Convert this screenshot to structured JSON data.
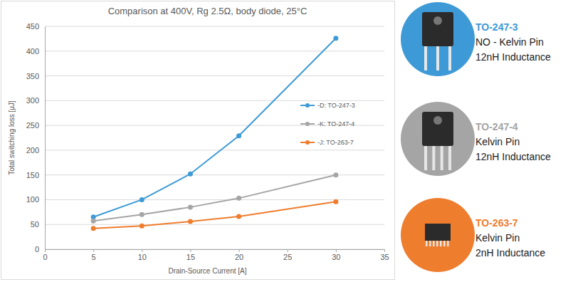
{
  "chart_data": {
    "type": "line",
    "title": "Comparison at 400V, Rg 2.5Ω, body diode, 25°C",
    "x_label": "Drain-Source Current [A]",
    "y_label": "Total switching loss [μJ]",
    "x": [
      5,
      10,
      15,
      20,
      30
    ],
    "series": [
      {
        "name": "-D: TO-247-3",
        "color": "#3d9ad6",
        "marker": "circle",
        "values": [
          65,
          100,
          152,
          229,
          426
        ]
      },
      {
        "name": "-K: TO-247-4",
        "color": "#a5a5a5",
        "marker": "circle",
        "values": [
          57,
          70,
          85,
          103,
          150
        ]
      },
      {
        "name": "-J: TO-263-7",
        "color": "#ee7d2e",
        "marker": "circle",
        "values": [
          42,
          47,
          56,
          66,
          96
        ]
      }
    ],
    "xlim": [
      0,
      35
    ],
    "xticks": [
      0,
      5,
      10,
      15,
      20,
      25,
      30,
      35
    ],
    "ylim": [
      0,
      450
    ],
    "yticks": [
      0,
      50,
      100,
      150,
      200,
      250,
      300,
      350,
      400,
      450
    ],
    "grid": true,
    "legend": "right",
    "annotations": [
      {
        "label": "TO-247-3",
        "color": "#3d9ad6",
        "lines": [
          "NO - Kelvin Pin",
          "12nH Inductance"
        ]
      },
      {
        "label": "TO-247-4",
        "color": "#a5a5a5",
        "lines": [
          "Kelvin Pin",
          "12nH Inductance"
        ]
      },
      {
        "label": "TO-263-7",
        "color": "#ee7d2e",
        "lines": [
          "Kelvin Pin",
          "2nH Inductance"
        ]
      }
    ]
  }
}
